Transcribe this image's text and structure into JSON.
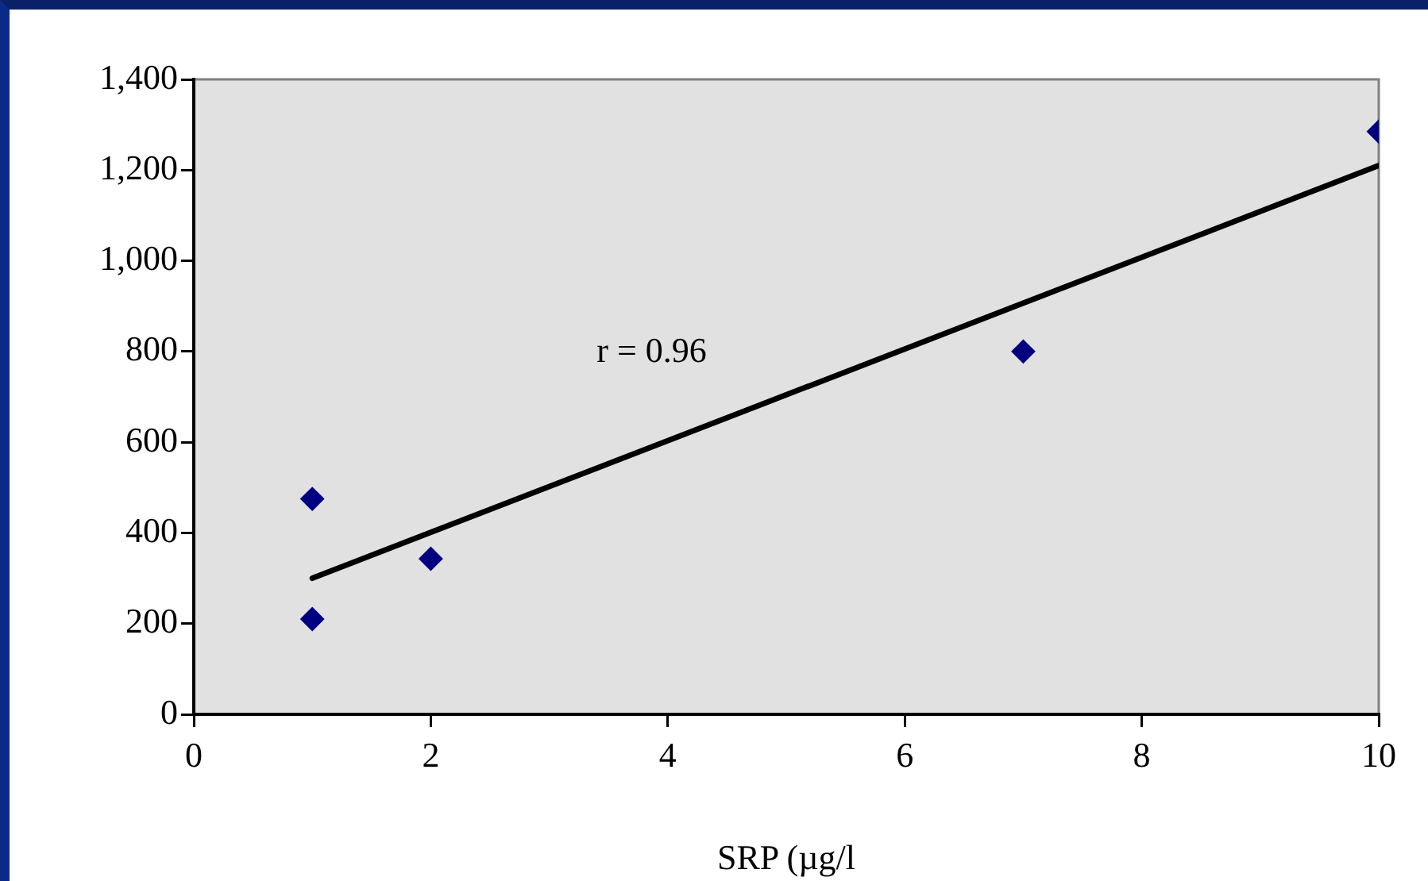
{
  "chart_data": {
    "type": "scatter",
    "xlabel": "SRP (µg/l",
    "xlim": [
      0,
      10
    ],
    "xticks": [
      0,
      2,
      4,
      6,
      8,
      10
    ],
    "ylim": [
      0,
      1400
    ],
    "yticks": [
      {
        "value": 0,
        "label": "0"
      },
      {
        "value": 200,
        "label": "200"
      },
      {
        "value": 400,
        "label": "400"
      },
      {
        "value": 600,
        "label": "600"
      },
      {
        "value": 800,
        "label": "800"
      },
      {
        "value": 1000,
        "label": "1,000"
      },
      {
        "value": 1200,
        "label": "1,200"
      },
      {
        "value": 1400,
        "label": "1,400"
      }
    ],
    "grid": false,
    "legend": false,
    "marker": "diamond",
    "annotations": [
      "r = 0.96"
    ],
    "series": [
      {
        "color": "#000080",
        "x": [
          1,
          1,
          2,
          7,
          10
        ],
        "values": [
          475,
          210,
          343,
          800,
          1285
        ]
      },
      {
        "type": "line",
        "color": "#000000",
        "marker": "none",
        "line_style": "solid",
        "x": [
          1,
          10
        ],
        "values": [
          300,
          1210
        ]
      }
    ]
  }
}
